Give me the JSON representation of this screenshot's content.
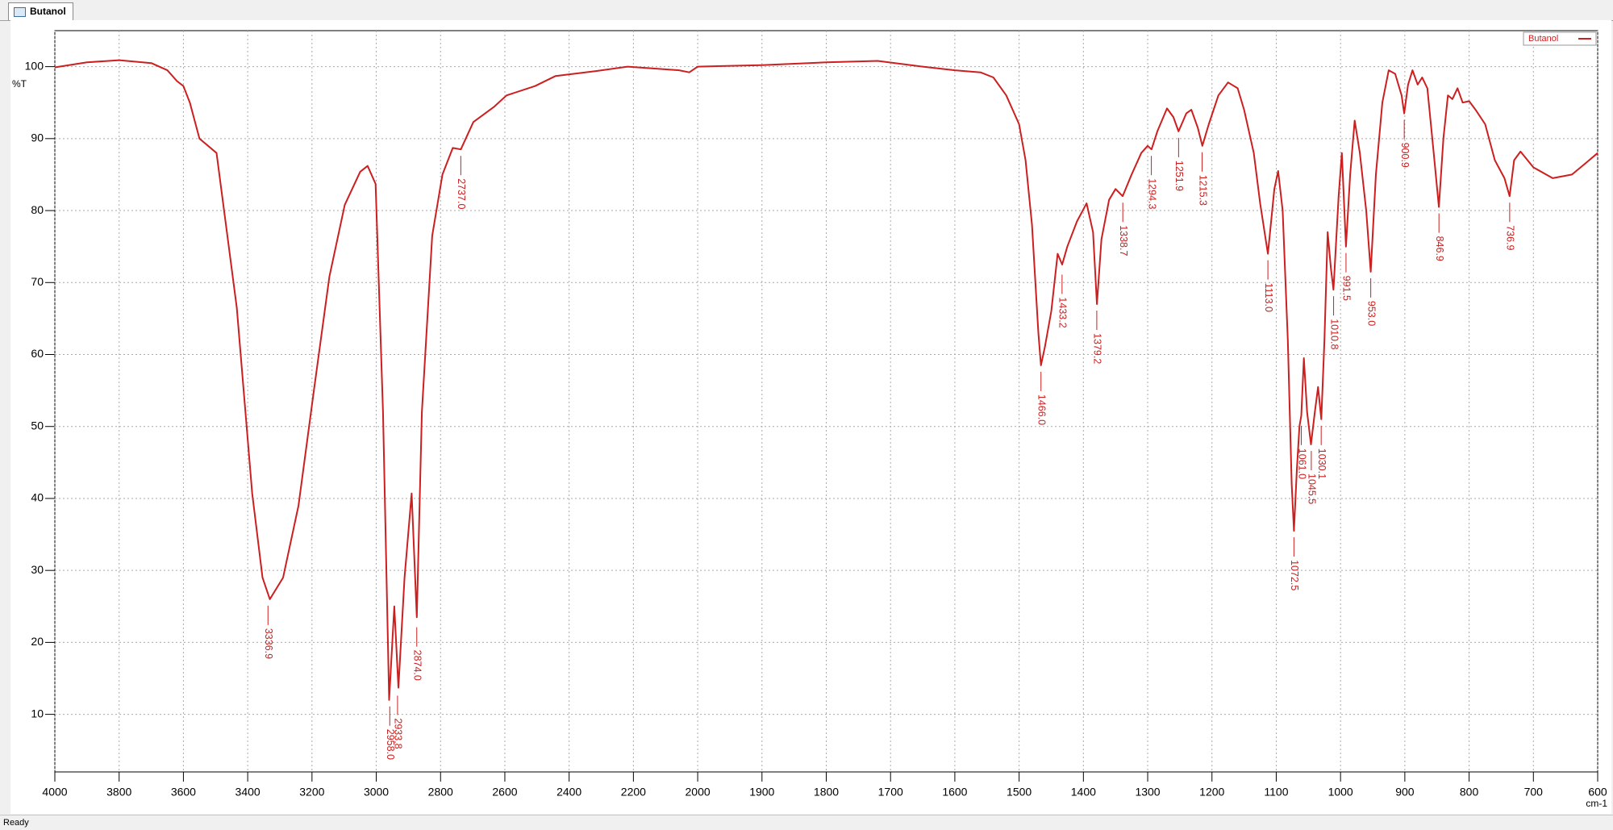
{
  "tab_title": "Butanol",
  "status": "Ready",
  "chart_data": {
    "type": "line",
    "ylabel": "%T",
    "xlabel": "cm-1",
    "legend": "top-right",
    "grid": true,
    "xlim": [
      4000,
      600
    ],
    "xticks": [
      4000,
      3800,
      3600,
      3400,
      3200,
      3000,
      2800,
      2600,
      2400,
      2200,
      2000,
      1900,
      1800,
      1700,
      1600,
      1500,
      1400,
      1300,
      1200,
      1100,
      1000,
      900,
      800,
      700,
      600
    ],
    "ylim": [
      2,
      105
    ],
    "yticks": [
      10,
      20,
      30,
      40,
      50,
      60,
      70,
      80,
      90,
      100
    ],
    "series": [
      {
        "name": "Butanol",
        "color": "#cc1f1f",
        "x": [
          4000,
          3900,
          3800,
          3700,
          3650,
          3620,
          3600,
          3580,
          3550,
          3497,
          3434,
          3386,
          3354,
          3331,
          3290,
          3242,
          3194,
          3146,
          3098,
          3050,
          3027,
          3002,
          2979,
          2960,
          2944,
          2931,
          2912,
          2890,
          2874,
          2858,
          2826,
          2794,
          2762,
          2737,
          2698,
          2634,
          2595,
          2506,
          2442,
          2314,
          2218,
          2058,
          2026,
          2000,
          1900,
          1800,
          1720,
          1650,
          1600,
          1560,
          1540,
          1520,
          1500,
          1490,
          1480,
          1470,
          1466,
          1460,
          1450,
          1440,
          1433,
          1425,
          1410,
          1395,
          1385,
          1379,
          1372,
          1360,
          1350,
          1339,
          1325,
          1310,
          1300,
          1294,
          1285,
          1270,
          1260,
          1252,
          1240,
          1232,
          1222,
          1215,
          1205,
          1190,
          1175,
          1160,
          1150,
          1135,
          1125,
          1113,
          1103,
          1097,
          1090,
          1082,
          1076,
          1072.5,
          1068,
          1064,
          1061,
          1057,
          1052,
          1046,
          1040,
          1035,
          1030,
          1025,
          1020,
          1015,
          1011,
          1003,
          998,
          991.5,
          985,
          978,
          970,
          960,
          953,
          945,
          935,
          925,
          915,
          905,
          901,
          895,
          888,
          880,
          873,
          865,
          855,
          847,
          840,
          833,
          826,
          818,
          810,
          800,
          790,
          775,
          760,
          745,
          737,
          730,
          720,
          700,
          670,
          640,
          620,
          600
        ],
        "values": [
          99.9,
          100.6,
          100.9,
          100.5,
          99.5,
          98,
          97.3,
          95,
          90,
          88,
          66.5,
          40.7,
          29,
          26,
          29,
          39,
          55,
          70.8,
          80.8,
          85.4,
          86.2,
          83.7,
          52,
          12,
          25,
          13.7,
          29,
          40.7,
          23.5,
          52,
          76.5,
          85,
          88.7,
          88.5,
          92.3,
          94.4,
          96,
          97.3,
          98.7,
          99.4,
          100,
          99.5,
          99.2,
          100,
          100.2,
          100.6,
          100.8,
          100,
          99.5,
          99.2,
          98.5,
          96,
          92,
          87,
          78,
          63,
          58.5,
          61,
          66,
          74,
          72.5,
          75,
          78.5,
          81,
          77,
          67,
          76,
          81.5,
          83,
          82,
          85,
          88,
          89,
          88.5,
          91,
          94.2,
          93,
          91,
          93.5,
          94,
          91.5,
          89,
          92,
          96,
          97.8,
          97,
          94,
          88,
          81,
          74,
          83,
          85.5,
          80,
          62,
          42,
          35.5,
          44,
          50,
          51.5,
          59.5,
          52,
          47.5,
          52,
          55.5,
          51,
          62,
          77,
          72,
          69,
          82,
          88,
          75,
          85,
          92.5,
          88,
          80,
          71.5,
          85,
          95,
          99.5,
          99,
          96,
          93.5,
          97.5,
          99.5,
          97.5,
          98.5,
          97,
          88,
          80.5,
          90,
          96,
          95.5,
          97,
          95,
          95.2,
          94,
          92,
          87,
          84.5,
          82,
          87,
          88.2,
          86,
          84.5,
          85,
          86.5,
          88
        ]
      }
    ],
    "peaks": {
      "x": [
        3336.9,
        2958.0,
        2933.8,
        2874.0,
        2737.0,
        1466.0,
        1433.2,
        1379.2,
        1338.7,
        1294.3,
        1251.9,
        1215.3,
        1113.0,
        1072.5,
        1061.0,
        1045.5,
        1030.1,
        1010.8,
        991.5,
        953.0,
        900.9,
        846.9,
        736.9
      ],
      "y": [
        26,
        12,
        13.5,
        23,
        88.5,
        58.5,
        72,
        67,
        82,
        88.5,
        91,
        89,
        74,
        35.5,
        51,
        47.5,
        51,
        69,
        75,
        71.5,
        93.5,
        80.5,
        82
      ],
      "labels": [
        "3336.9",
        "2958.0",
        "2933.8",
        "2874.0",
        "2737.0",
        "1466.0",
        "1433.2",
        "1379.2",
        "1338.7",
        "1294.3",
        "1251.9",
        "1215.3",
        "1113.0",
        "1072.5",
        "1061.0",
        "1045.5",
        "1030.1",
        "1010.8",
        "991.5",
        "953.0",
        "900.9",
        "846.9",
        "736.9"
      ]
    }
  }
}
